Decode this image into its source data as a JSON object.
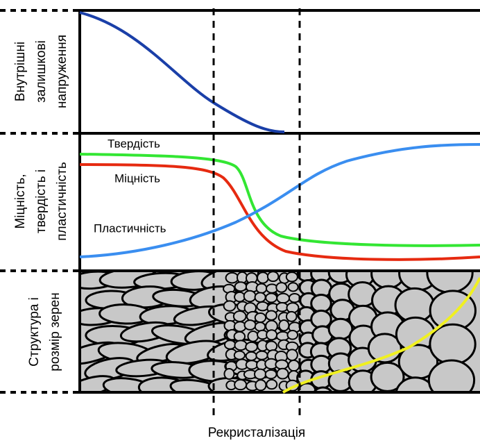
{
  "panels": [
    {
      "label": [
        "Внутрішні",
        "залишкові",
        "напруження"
      ]
    },
    {
      "label": [
        "Міцність,",
        "твердість і",
        "пластичність"
      ]
    },
    {
      "label": [
        "Структура і",
        "розмір зерен"
      ]
    }
  ],
  "curves": {
    "hardness": "Твердість",
    "strength": "Міцність",
    "plasticity": "Пластичність"
  },
  "xlabel": "Рекристалізація"
}
